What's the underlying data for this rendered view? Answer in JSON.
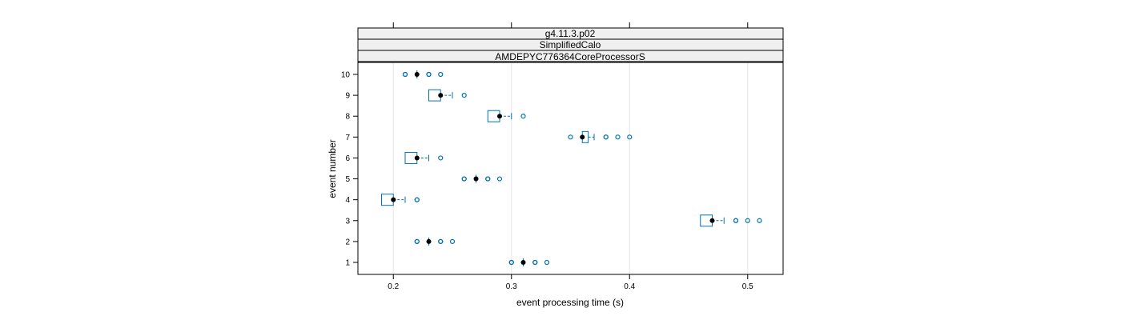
{
  "chart_data": {
    "type": "box",
    "orientation": "horizontal",
    "strips": [
      "g4.11.3.p02",
      "SimplifiedCalo",
      "AMDEPYC776364CoreProcessorS"
    ],
    "xlabel": "event processing time (s)",
    "ylabel": "event number",
    "xlim": [
      0.17,
      0.53
    ],
    "xticks": [
      0.2,
      0.3,
      0.4,
      0.5
    ],
    "xtick_labels": [
      "0.2",
      "0.3",
      "0.4",
      "0.5"
    ],
    "grid": "vertical",
    "categories": [
      "1",
      "2",
      "3",
      "4",
      "5",
      "6",
      "7",
      "8",
      "9",
      "10"
    ],
    "boxes": [
      {
        "event": "1",
        "median": 0.31,
        "q1": 0.31,
        "q3": 0.31,
        "whisker_low": 0.31,
        "whisker_high": 0.31,
        "outliers": [
          0.3,
          0.3,
          0.32,
          0.32,
          0.33
        ]
      },
      {
        "event": "2",
        "median": 0.23,
        "q1": 0.23,
        "q3": 0.23,
        "whisker_low": 0.23,
        "whisker_high": 0.23,
        "outliers": [
          0.22,
          0.22,
          0.24,
          0.24,
          0.25
        ]
      },
      {
        "event": "3",
        "median": 0.47,
        "q1": 0.46,
        "q3": 0.47,
        "whisker_low": 0.46,
        "whisker_high": 0.48,
        "outliers": [
          0.49,
          0.49,
          0.5,
          0.51
        ]
      },
      {
        "event": "4",
        "median": 0.2,
        "q1": 0.19,
        "q3": 0.2,
        "whisker_low": 0.19,
        "whisker_high": 0.21,
        "outliers": [
          0.22,
          0.22
        ]
      },
      {
        "event": "5",
        "median": 0.27,
        "q1": 0.27,
        "q3": 0.27,
        "whisker_low": 0.27,
        "whisker_high": 0.27,
        "outliers": [
          0.26,
          0.26,
          0.28,
          0.28,
          0.29
        ]
      },
      {
        "event": "6",
        "median": 0.22,
        "q1": 0.21,
        "q3": 0.22,
        "whisker_low": 0.21,
        "whisker_high": 0.23,
        "outliers": [
          0.24
        ]
      },
      {
        "event": "7",
        "median": 0.36,
        "q1": 0.36,
        "q3": 0.365,
        "whisker_low": 0.36,
        "whisker_high": 0.37,
        "outliers": [
          0.35,
          0.38,
          0.38,
          0.39,
          0.4
        ]
      },
      {
        "event": "8",
        "median": 0.29,
        "q1": 0.28,
        "q3": 0.29,
        "whisker_low": 0.28,
        "whisker_high": 0.3,
        "outliers": [
          0.31
        ]
      },
      {
        "event": "9",
        "median": 0.24,
        "q1": 0.23,
        "q3": 0.24,
        "whisker_low": 0.23,
        "whisker_high": 0.25,
        "outliers": [
          0.26
        ]
      },
      {
        "event": "10",
        "median": 0.22,
        "q1": 0.22,
        "q3": 0.22,
        "whisker_low": 0.22,
        "whisker_high": 0.22,
        "outliers": [
          0.21,
          0.21,
          0.23,
          0.23,
          0.24
        ]
      }
    ],
    "colors": {
      "box": "#0072b2",
      "median": "#000000",
      "grid": "#e6e6e6",
      "strip_bg": "#f0f0f0",
      "frame": "#000000"
    }
  }
}
